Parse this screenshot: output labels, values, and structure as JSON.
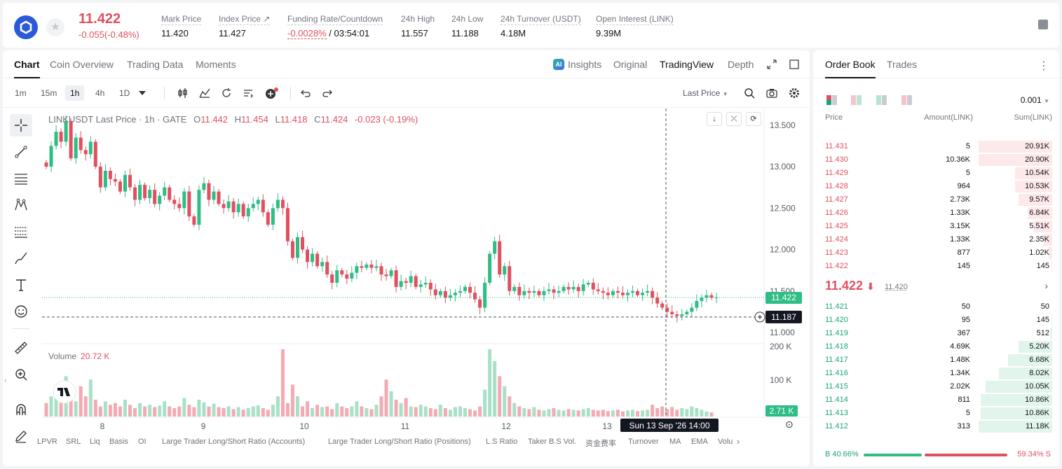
{
  "header": {
    "last_price": "11.422",
    "change": "-0.055(-0.48%)",
    "stats": [
      {
        "label": "Mark Price",
        "value": "11.420"
      },
      {
        "label": "Index Price ↗",
        "value": "11.427"
      },
      {
        "label": "Funding Rate/Countdown",
        "value_red": "-0.0028%",
        "value": " / 03:54:01"
      },
      {
        "label": "24h High",
        "value": "11.557"
      },
      {
        "label": "24h Low",
        "value": "11.188"
      },
      {
        "label": "24h Turnover (USDT)",
        "value": "4.18M"
      },
      {
        "label": "Open Interest (LINK)",
        "value": "9.39M"
      }
    ]
  },
  "tabs": [
    "Chart",
    "Coin Overview",
    "Trading Data",
    "Moments"
  ],
  "ai_badge": "AI",
  "views": [
    "Insights",
    "Original",
    "TradingView",
    "Depth"
  ],
  "timeframes": [
    "1m",
    "15m",
    "1h",
    "4h",
    "1D"
  ],
  "last_price_selector": "Last Price",
  "legend": {
    "title": "LINKUSDT Last Price · 1h · GATE",
    "o_label": "O",
    "o": "11.442",
    "h_label": "H",
    "h": "11.454",
    "l_label": "L",
    "l": "11.418",
    "c_label": "C",
    "c": "11.424",
    "chg": "-0.023 (-0.19%)"
  },
  "volume_legend": {
    "label": "Volume",
    "value": "20.72 K"
  },
  "chart_data": {
    "type": "candlestick",
    "price_axis": {
      "ticks": [
        "13.500",
        "13.000",
        "12.500",
        "12.000",
        "11.500",
        "11.000"
      ],
      "range": [
        10.95,
        13.65
      ]
    },
    "volume_axis": {
      "ticks": [
        "200 K",
        "100 K"
      ]
    },
    "x_ticks": [
      "8",
      "9",
      "10",
      "11",
      "12",
      "13"
    ],
    "last_price_label": "11.422",
    "crosshair_price_label": "11.187",
    "volume_label": "2.71 K",
    "crosshair_time_label": "Sun 13 Sep '26   14:00",
    "close_path": [
      13.0,
      13.25,
      13.42,
      13.3,
      13.55,
      13.1,
      13.35,
      13.2,
      13.15,
      13.3,
      13.0,
      12.75,
      12.95,
      12.85,
      12.82,
      12.7,
      12.9,
      12.75,
      12.6,
      12.78,
      12.62,
      12.72,
      12.55,
      12.65,
      12.75,
      12.6,
      12.55,
      12.5,
      12.7,
      12.4,
      12.3,
      12.72,
      12.8,
      12.6,
      12.7,
      12.55,
      12.5,
      12.58,
      12.45,
      12.55,
      12.4,
      12.5,
      12.55,
      12.6,
      12.45,
      12.3,
      12.5,
      12.6,
      12.5,
      12.1,
      11.9,
      12.15,
      12.0,
      11.85,
      11.95,
      11.8,
      11.85,
      11.7,
      11.6,
      11.75,
      11.7,
      11.65,
      11.72,
      11.8,
      11.78,
      11.82,
      11.78,
      11.8,
      11.7,
      11.68,
      11.75,
      11.55,
      11.62,
      11.6,
      11.68,
      11.55,
      11.58,
      11.6,
      11.52,
      11.45,
      11.5,
      11.42,
      11.45,
      11.48,
      11.5,
      11.55,
      11.48,
      11.4,
      11.3,
      11.6,
      11.95,
      12.1,
      11.7,
      11.8,
      11.5,
      11.55,
      11.45,
      11.5,
      11.48,
      11.5,
      11.45,
      11.5,
      11.52,
      11.48,
      11.5,
      11.55,
      11.52,
      11.55,
      11.5,
      11.58,
      11.6,
      11.52,
      11.5,
      11.48,
      11.45,
      11.5,
      11.48,
      11.45,
      11.48,
      11.5,
      11.45,
      11.48,
      11.5,
      11.42,
      11.35,
      11.3,
      11.25,
      11.22,
      11.2,
      11.22,
      11.25,
      11.3,
      11.38,
      11.42,
      11.45,
      11.42,
      11.424
    ],
    "volume_path": [
      40,
      60,
      85,
      55,
      120,
      70,
      45,
      90,
      60,
      110,
      50,
      30,
      45,
      35,
      40,
      30,
      50,
      35,
      25,
      40,
      30,
      35,
      28,
      32,
      45,
      30,
      25,
      30,
      55,
      35,
      28,
      50,
      42,
      30,
      38,
      28,
      25,
      30,
      22,
      28,
      20,
      25,
      30,
      33,
      25,
      20,
      35,
      60,
      200,
      40,
      95,
      60,
      30,
      45,
      25,
      35,
      28,
      30,
      22,
      40,
      30,
      25,
      30,
      45,
      30,
      25,
      22,
      35,
      60,
      110,
      75,
      50,
      40,
      55,
      30,
      28,
      35,
      30,
      25,
      22,
      35,
      25,
      20,
      28,
      30,
      25,
      22,
      18,
      30,
      80,
      200,
      165,
      120,
      90,
      60,
      40,
      30,
      25,
      22,
      28,
      20,
      18,
      22,
      25,
      20,
      18,
      22,
      20,
      18,
      22,
      25,
      20,
      18,
      20,
      16,
      18,
      20,
      15,
      18,
      20,
      16,
      18,
      20,
      35,
      25,
      30,
      22,
      28,
      20,
      25,
      22,
      30,
      25,
      20,
      15,
      12
    ]
  },
  "drawing_tools": [
    "crosshair-icon",
    "trendline-icon",
    "horizontal-lines-icon",
    "pattern-icon",
    "fib-icon",
    "brush-icon",
    "text-icon",
    "emoji-icon",
    "ruler-icon",
    "zoom-icon",
    "magnet-icon",
    "pencil-icon"
  ],
  "bottom_indicators": [
    "LPVR",
    "SRL",
    "Liq",
    "Basis",
    "OI",
    "Large Trader Long/Short Ratio (Accounts)",
    "Large Trader Long/Short Ratio (Positions)",
    "L.S Ratio",
    "Taker B.S Vol.",
    "资金费率",
    "Turnover",
    "MA",
    "EMA",
    "Volu"
  ],
  "order_book": {
    "tabs": [
      "Order Book",
      "Trades"
    ],
    "precision": "0.001",
    "headers": {
      "price": "Price",
      "amount": "Amount(LINK)",
      "sum": "Sum(LINK)"
    },
    "asks": [
      {
        "price": "11.431",
        "amount": "5",
        "sum": "20.91K",
        "depth": 1.0
      },
      {
        "price": "11.430",
        "amount": "10.36K",
        "sum": "20.90K",
        "depth": 1.0
      },
      {
        "price": "11.429",
        "amount": "5",
        "sum": "10.54K",
        "depth": 0.5
      },
      {
        "price": "11.428",
        "amount": "964",
        "sum": "10.53K",
        "depth": 0.5
      },
      {
        "price": "11.427",
        "amount": "2.73K",
        "sum": "9.57K",
        "depth": 0.46
      },
      {
        "price": "11.426",
        "amount": "1.33K",
        "sum": "6.84K",
        "depth": 0.33
      },
      {
        "price": "11.425",
        "amount": "3.15K",
        "sum": "5.51K",
        "depth": 0.26
      },
      {
        "price": "11.424",
        "amount": "1.33K",
        "sum": "2.35K",
        "depth": 0.11
      },
      {
        "price": "11.423",
        "amount": "877",
        "sum": "1.02K",
        "depth": 0.05
      },
      {
        "price": "11.422",
        "amount": "145",
        "sum": "145",
        "depth": 0.01
      }
    ],
    "mid": {
      "price": "11.422",
      "arrow": "⬇",
      "mark": "11.420",
      "chevron": "›"
    },
    "bids": [
      {
        "price": "11.421",
        "amount": "50",
        "sum": "50",
        "depth": 0.0
      },
      {
        "price": "11.420",
        "amount": "95",
        "sum": "145",
        "depth": 0.01
      },
      {
        "price": "11.419",
        "amount": "367",
        "sum": "512",
        "depth": 0.03
      },
      {
        "price": "11.418",
        "amount": "4.69K",
        "sum": "5.20K",
        "depth": 0.46
      },
      {
        "price": "11.417",
        "amount": "1.48K",
        "sum": "6.68K",
        "depth": 0.6
      },
      {
        "price": "11.416",
        "amount": "1.34K",
        "sum": "8.02K",
        "depth": 0.72
      },
      {
        "price": "11.415",
        "amount": "2.02K",
        "sum": "10.05K",
        "depth": 0.9
      },
      {
        "price": "11.414",
        "amount": "811",
        "sum": "10.86K",
        "depth": 0.97
      },
      {
        "price": "11.413",
        "amount": "5",
        "sum": "10.86K",
        "depth": 0.97
      },
      {
        "price": "11.412",
        "amount": "313",
        "sum": "11.18K",
        "depth": 1.0
      }
    ],
    "ratio": {
      "buy": "B 40.66%",
      "sell": "59.34% S",
      "buy_fraction": 0.4066
    }
  },
  "colors": {
    "up": "#18a57a",
    "down": "#e0505f",
    "accent": "#121212"
  }
}
